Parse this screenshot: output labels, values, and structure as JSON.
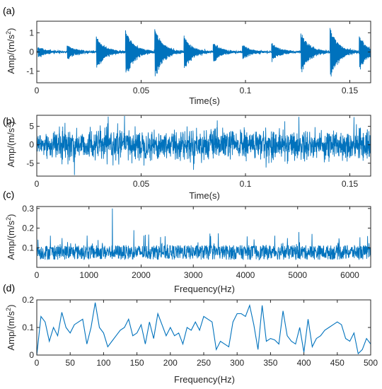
{
  "chart_data": [
    {
      "panel": "(a)",
      "type": "line",
      "xlabel": "Time(s)",
      "ylabel": "Amp/(m/s²)",
      "xlim": [
        0,
        0.16
      ],
      "ylim": [
        -1.6,
        1.6
      ],
      "xticks": [
        0,
        0.05,
        0.1,
        0.15
      ],
      "xticklabels": [
        "0",
        "0.05",
        "0.1",
        "0.15"
      ],
      "yticks": [
        -1,
        0,
        1
      ],
      "yticklabels": [
        "-1",
        "0",
        "1"
      ],
      "signal": {
        "kind": "impulse_train",
        "impulse_times": [
          0.0005,
          0.0145,
          0.0285,
          0.0425,
          0.0565,
          0.0705,
          0.0845,
          0.0985,
          0.1125,
          0.1265,
          0.1405,
          0.1545
        ],
        "impulse_amplitudes": [
          0.35,
          0.45,
          1.0,
          1.45,
          1.55,
          1.0,
          0.6,
          0.45,
          0.55,
          1.3,
          1.6,
          1.0
        ],
        "decay_time_s": 0.004,
        "oscillation_hz": 3000
      },
      "color": "#0072BD"
    },
    {
      "panel": "(b)",
      "type": "line",
      "xlabel": "Time(s)",
      "ylabel": "Amp/(m/s²)",
      "xlim": [
        0,
        0.16
      ],
      "ylim": [
        -8.5,
        8
      ],
      "xticks": [
        0,
        0.05,
        0.1,
        0.15
      ],
      "xticklabels": [
        "0",
        "0.05",
        "0.1",
        "0.15"
      ],
      "yticks": [
        -5,
        0,
        5
      ],
      "yticklabels": [
        "-5",
        "0",
        "5"
      ],
      "signal": {
        "kind": "noise",
        "std": 2.5,
        "peak": 8
      },
      "color": "#0072BD"
    },
    {
      "panel": "(c)",
      "type": "line",
      "xlabel": "Frequency(Hz)",
      "ylabel": "Amp/(m/s²)",
      "xlim": [
        0,
        6400
      ],
      "ylim": [
        0,
        0.31
      ],
      "xticks": [
        0,
        1000,
        2000,
        3000,
        4000,
        5000,
        6000
      ],
      "xticklabels": [
        "0",
        "1000",
        "2000",
        "3000",
        "4000",
        "5000",
        "6000"
      ],
      "yticks": [
        0.1,
        0.2,
        0.3
      ],
      "yticklabels": [
        "0.1",
        "0.2",
        "0.3"
      ],
      "signal": {
        "kind": "spectrum",
        "mean": 0.085,
        "max": 0.3,
        "peak_at_hz": 1450
      },
      "color": "#0072BD"
    },
    {
      "panel": "(d)",
      "type": "line",
      "xlabel": "Frequency(Hz)",
      "ylabel": "Amp/(m/s²)",
      "xlim": [
        0,
        500
      ],
      "ylim": [
        0,
        0.2
      ],
      "xticks": [
        0,
        50,
        100,
        150,
        200,
        250,
        300,
        350,
        400,
        450,
        500
      ],
      "xticklabels": [
        "0",
        "50",
        "100",
        "150",
        "200",
        "250",
        "300",
        "350",
        "400",
        "450",
        "500"
      ],
      "yticks": [
        0,
        0.1,
        0.2
      ],
      "yticklabels": [
        "0",
        "0.1",
        "0.2"
      ],
      "x": [
        0,
        6.25,
        12.5,
        18.75,
        25,
        31.25,
        37.5,
        43.75,
        50,
        56.25,
        62.5,
        68.75,
        75,
        81.25,
        87.5,
        93.75,
        100,
        106.25,
        112.5,
        118.75,
        125,
        131.25,
        137.5,
        143.75,
        150,
        156.25,
        162.5,
        168.75,
        175,
        181.25,
        187.5,
        193.75,
        200,
        206.25,
        212.5,
        218.75,
        225,
        231.25,
        237.5,
        243.75,
        250,
        256.25,
        262.5,
        268.75,
        275,
        281.25,
        287.5,
        293.75,
        300,
        306.25,
        312.5,
        318.75,
        325,
        331.25,
        337.5,
        343.75,
        350,
        356.25,
        362.5,
        368.75,
        375,
        381.25,
        387.5,
        393.75,
        400,
        406.25,
        412.5,
        418.75,
        425,
        431.25,
        437.5,
        443.75,
        450,
        456.25,
        462.5,
        468.75,
        475,
        481.25,
        487.5,
        493.75,
        500
      ],
      "y": [
        0.0,
        0.14,
        0.12,
        0.05,
        0.1,
        0.07,
        0.155,
        0.1,
        0.08,
        0.11,
        0.12,
        0.13,
        0.04,
        0.1,
        0.19,
        0.1,
        0.08,
        0.03,
        0.05,
        0.07,
        0.09,
        0.1,
        0.13,
        0.07,
        0.08,
        0.11,
        0.04,
        0.12,
        0.06,
        0.15,
        0.11,
        0.07,
        0.1,
        0.07,
        0.08,
        0.04,
        0.1,
        0.09,
        0.12,
        0.09,
        0.14,
        0.13,
        0.12,
        0.02,
        0.05,
        0.04,
        0.03,
        0.12,
        0.15,
        0.15,
        0.14,
        0.18,
        0.11,
        0.02,
        0.18,
        0.05,
        0.06,
        0.055,
        0.04,
        0.16,
        0.07,
        0.05,
        0.04,
        0.1,
        0.01,
        0.13,
        0.03,
        0.06,
        0.07,
        0.09,
        0.1,
        0.11,
        0.12,
        0.11,
        0.06,
        0.05,
        0.08,
        0.005,
        0.02,
        0.06,
        0.04
      ],
      "color": "#0072BD"
    }
  ]
}
